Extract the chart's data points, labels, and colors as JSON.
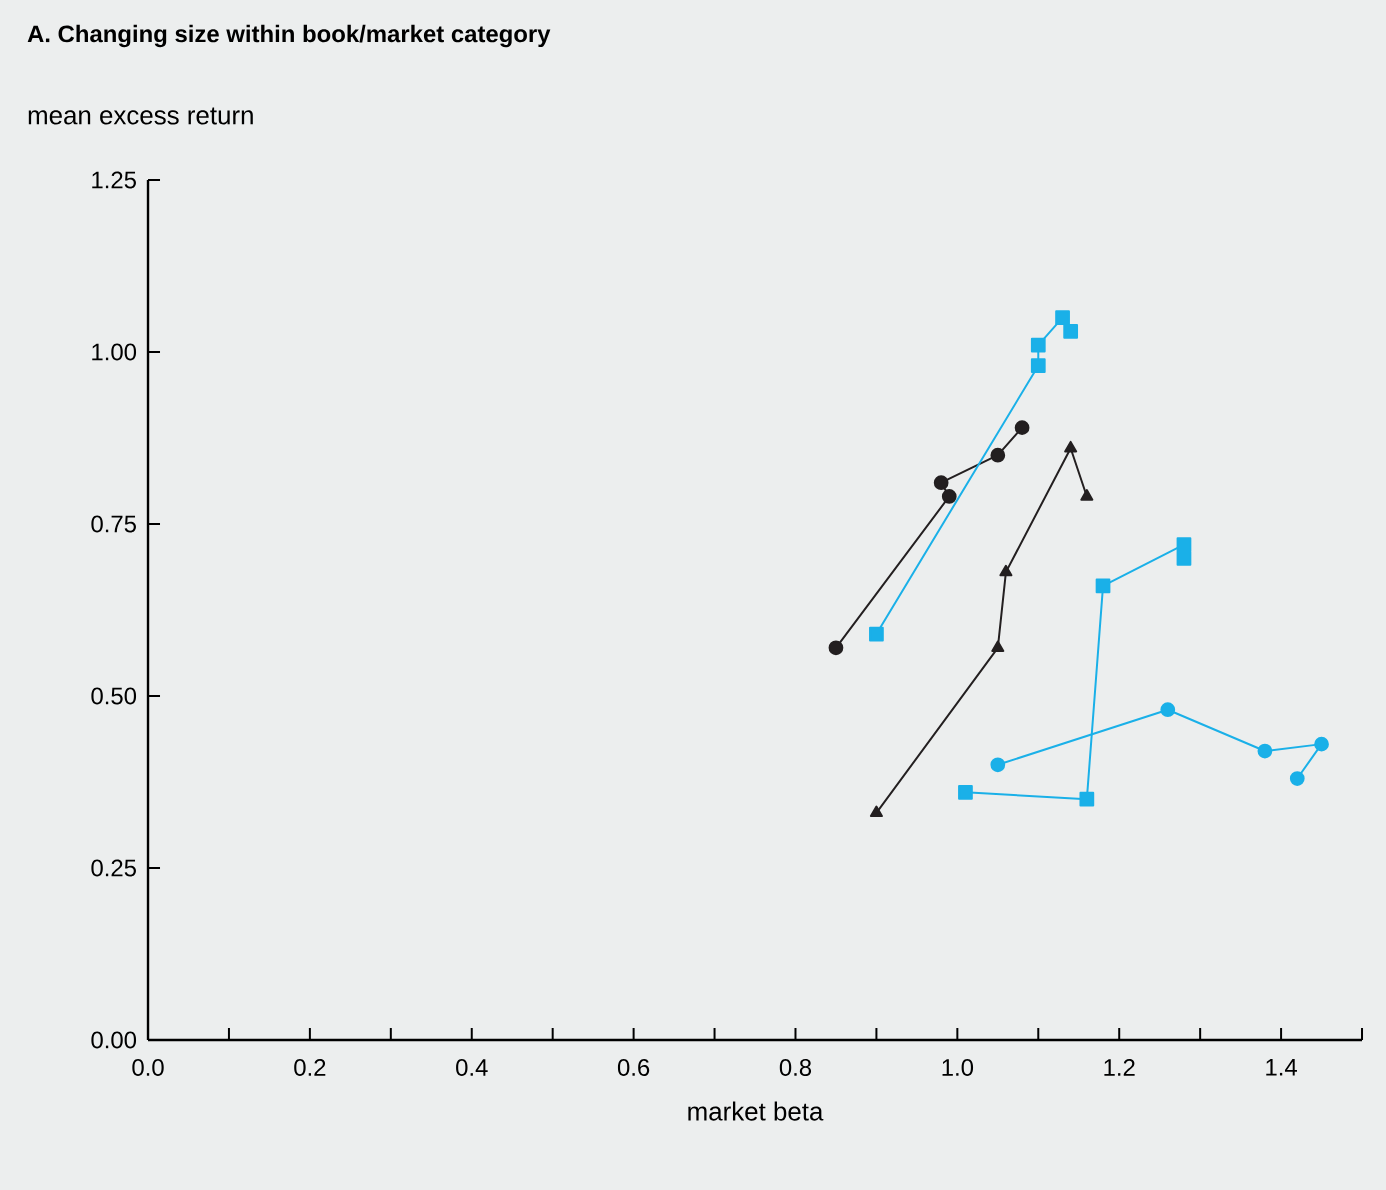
{
  "chart_data": {
    "type": "line",
    "title": "A. Changing size within book/market category",
    "ylabel": "mean excess return",
    "xlabel": "market beta",
    "xlim": [
      0,
      1.5
    ],
    "ylim": [
      0,
      1.25
    ],
    "xticks": [
      {
        "value": 0,
        "label": "0.0"
      },
      {
        "value": 0.1,
        "label": null
      },
      {
        "value": 0.2,
        "label": "0.2"
      },
      {
        "value": 0.3,
        "label": null
      },
      {
        "value": 0.4,
        "label": "0.4"
      },
      {
        "value": 0.5,
        "label": null
      },
      {
        "value": 0.6,
        "label": "0.6"
      },
      {
        "value": 0.7,
        "label": null
      },
      {
        "value": 0.8,
        "label": "0.8"
      },
      {
        "value": 0.9,
        "label": null
      },
      {
        "value": 1.0,
        "label": "1.0"
      },
      {
        "value": 1.1,
        "label": null
      },
      {
        "value": 1.2,
        "label": "1.2"
      },
      {
        "value": 1.3,
        "label": null
      },
      {
        "value": 1.4,
        "label": "1.4"
      },
      {
        "value": 1.5,
        "label": null
      }
    ],
    "yticks": [
      {
        "value": 0,
        "label": "0.00"
      },
      {
        "value": 0.25,
        "label": "0.25"
      },
      {
        "value": 0.5,
        "label": "0.50"
      },
      {
        "value": 0.75,
        "label": "0.75"
      },
      {
        "value": 1.0,
        "label": "1.00"
      },
      {
        "value": 1.25,
        "label": "1.25"
      }
    ],
    "grid": false,
    "line_style": "solid",
    "series": [
      {
        "color": "#231f20",
        "marker": "circle",
        "x": [
          0.85,
          0.99,
          0.98,
          1.05,
          1.08
        ],
        "values": [
          0.57,
          0.79,
          0.81,
          0.85,
          0.89
        ]
      },
      {
        "color": "#1ab0e8",
        "marker": "square",
        "x": [
          0.9,
          1.1,
          1.1,
          1.13,
          1.14
        ],
        "values": [
          0.59,
          0.98,
          1.01,
          1.05,
          1.03
        ]
      },
      {
        "color": "#231f20",
        "marker": "triangle",
        "x": [
          0.9,
          1.05,
          1.06,
          1.14,
          1.16
        ],
        "values": [
          0.33,
          0.57,
          0.68,
          0.86,
          0.79
        ]
      },
      {
        "color": "#1ab0e8",
        "marker": "square",
        "x": [
          1.01,
          1.16,
          1.18,
          1.28,
          1.28
        ],
        "values": [
          0.36,
          0.35,
          0.66,
          0.72,
          0.7
        ]
      },
      {
        "color": "#1ab0e8",
        "marker": "circle",
        "x": [
          1.05,
          1.26,
          1.38,
          1.45,
          1.42
        ],
        "values": [
          0.4,
          0.48,
          0.42,
          0.43,
          0.38
        ]
      }
    ]
  }
}
